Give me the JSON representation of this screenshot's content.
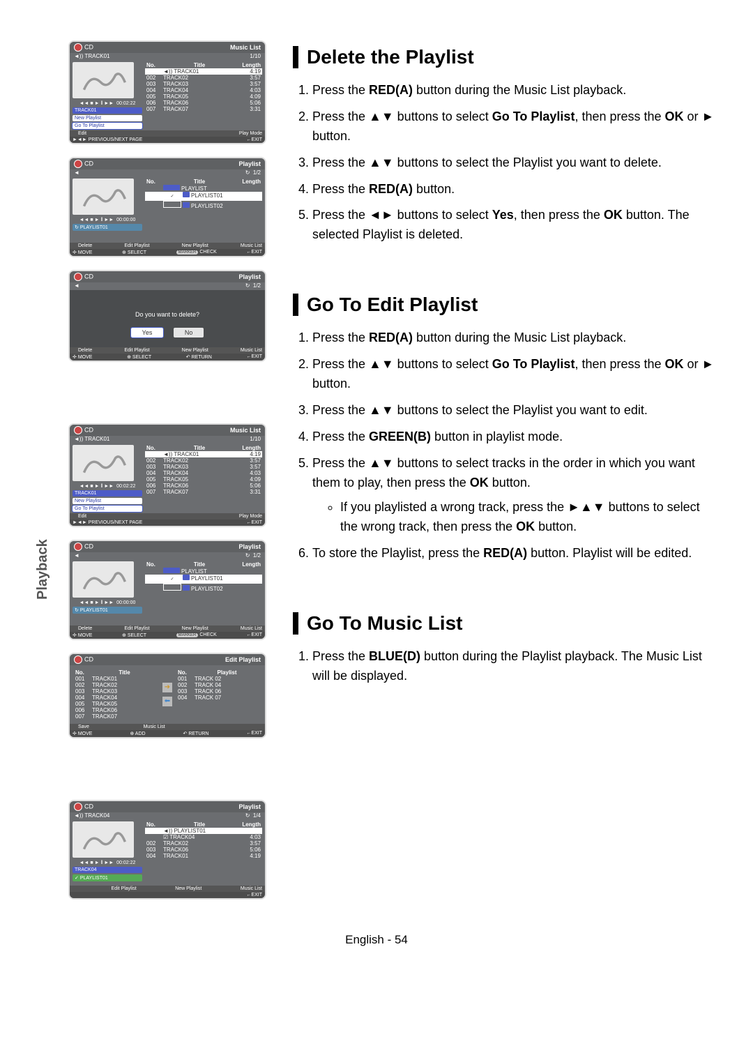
{
  "page": {
    "vertical_tab": "Playback",
    "footer": "English - 54"
  },
  "sections": {
    "delete": {
      "heading": "Delete the Playlist",
      "steps": [
        "Press the **RED(A)** button during the Music List playback.",
        "Press the ▲▼ buttons to select **Go To Playlist**, then press the **OK** or ► button.",
        "Press the ▲▼ buttons to select the Playlist you want to delete.",
        "Press the **RED(A)** button.",
        "Press the ◄► buttons to select **Yes**, then press the **OK** button. The selected Playlist is deleted."
      ]
    },
    "edit": {
      "heading": "Go To Edit Playlist",
      "steps": [
        "Press the **RED(A)** button during the Music List playback.",
        "Press the ▲▼ buttons to select **Go To Playlist**, then press the **OK** or ► button.",
        "Press the ▲▼ buttons to select the Playlist you want to edit.",
        "Press the **GREEN(B)** button in playlist mode.",
        "Press the ▲▼ buttons to select tracks in the order in which you want them to play, then press the **OK** button.",
        "To store the Playlist, press the **RED(A)** button. Playlist will be edited."
      ],
      "sub_bullet": "If you playlisted a wrong track, press the ►▲▼ buttons to select the wrong track, then press the **OK** button."
    },
    "music": {
      "heading": "Go To Music List",
      "steps": [
        "Press the **BLUE(D)** button during the Playlist playback. The Music List will be displayed."
      ]
    }
  },
  "osd": {
    "cd_label": "CD",
    "music_list": "Music List",
    "playlist": "Playlist",
    "edit_playlist": "Edit Playlist",
    "track_header": {
      "no": "No.",
      "title": "Title",
      "length": "Length",
      "playlist": "Playlist"
    },
    "musiclist_tracks": [
      {
        "no": "",
        "title": "TRACK01",
        "length": "4:19",
        "active": true,
        "icon": "speaker"
      },
      {
        "no": "002",
        "title": "TRACK02",
        "length": "3:57"
      },
      {
        "no": "003",
        "title": "TRACK03",
        "length": "3:57"
      },
      {
        "no": "004",
        "title": "TRACK04",
        "length": "4:03"
      },
      {
        "no": "005",
        "title": "TRACK05",
        "length": "4:09"
      },
      {
        "no": "006",
        "title": "TRACK06",
        "length": "5:06"
      },
      {
        "no": "007",
        "title": "TRACK07",
        "length": "3:31"
      }
    ],
    "musiclist_counter": "1/10",
    "transport_time": "00:02:22",
    "nowplaying_pill": "TRACK01",
    "popup_items": [
      "New Playlist",
      "Go To Playlist"
    ],
    "popup_title": "Edit",
    "play_mode": "Play Mode",
    "prevnext": "PREVIOUS/NEXT PAGE",
    "exit_btn": "EXIT",
    "playlist_counter": "1/2",
    "loop_icon": "↻",
    "transport_time_zero": "00:00:00",
    "playlist_pill": "PLAYLIST01",
    "playlist_folders": [
      {
        "title": "PLAYLIST",
        "selected": false,
        "root": true
      },
      {
        "title": "PLAYLIST01",
        "selected": true
      },
      {
        "title": "PLAYLIST02",
        "selected": false
      }
    ],
    "legends": {
      "delete": "Delete",
      "edit": "Edit Playlist",
      "new": "New Playlist",
      "music_list": "Music List",
      "save": "Save",
      "add": "ADD",
      "move": "MOVE",
      "select": "SELECT",
      "check": "CHECK",
      "return": "RETURN"
    },
    "dialog": {
      "text": "Do you want to delete?",
      "yes": "Yes",
      "no": "No"
    },
    "editlist_left": [
      {
        "no": "001",
        "title": "TRACK01"
      },
      {
        "no": "002",
        "title": "TRACK02"
      },
      {
        "no": "003",
        "title": "TRACK03"
      },
      {
        "no": "004",
        "title": "TRACK04"
      },
      {
        "no": "005",
        "title": "TRACK05"
      },
      {
        "no": "006",
        "title": "TRACK06"
      },
      {
        "no": "007",
        "title": "TRACK07"
      }
    ],
    "editlist_right": [
      {
        "no": "001",
        "title": "TRACK 02"
      },
      {
        "no": "002",
        "title": "TRACK 04"
      },
      {
        "no": "003",
        "title": "TRACK 06"
      },
      {
        "no": "004",
        "title": "TRACK 07"
      }
    ],
    "screen6_counter": "1/4",
    "screen6_track": "TRACK04",
    "screen6_rows": [
      {
        "no": "",
        "title": "PLAYLIST01",
        "length": "",
        "icon": "speaker",
        "active": true
      },
      {
        "no": "",
        "title": "TRACK04",
        "length": "4:03",
        "icon": "check"
      },
      {
        "no": "002",
        "title": "TRACK02",
        "length": "3:57"
      },
      {
        "no": "003",
        "title": "TRACK06",
        "length": "5:06"
      },
      {
        "no": "004",
        "title": "TRACK01",
        "length": "4:19"
      }
    ],
    "screen6_pills": [
      "TRACK04",
      "PLAYLIST01"
    ]
  },
  "colors": {
    "osd_bg": "#6b6d70",
    "osd_header": "#5f6163",
    "accent_blue": "#4d5cc7",
    "red_pill": "#c33",
    "green_pill": "#2a2",
    "yellow_pill": "#cc3",
    "blue_pill": "#36c",
    "triangle": "#888888"
  }
}
